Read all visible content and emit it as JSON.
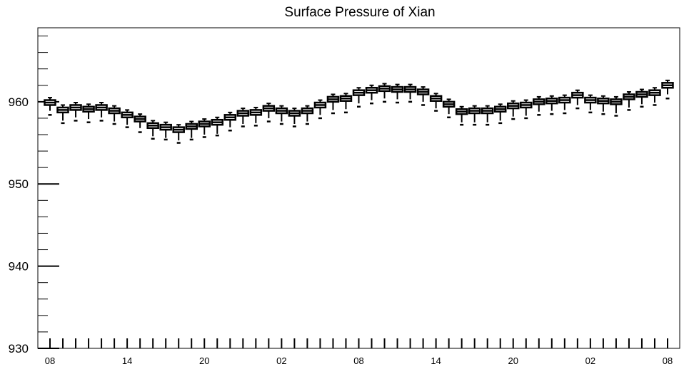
{
  "chart_data": {
    "type": "box",
    "title": "Surface Pressure of Xian",
    "xlabel": "",
    "ylabel": "",
    "ylim": [
      930,
      969
    ],
    "y_ticks": [
      930,
      940,
      950,
      960
    ],
    "y_minor_step": 2,
    "x_tick_labels": [
      "08",
      "14",
      "20",
      "02",
      "08",
      "14",
      "20",
      "02",
      "08"
    ],
    "x_step_hours": 3,
    "grid": false,
    "series": [
      {
        "median": [
          959.9,
          959.0,
          959.3,
          959.1,
          959.3,
          958.9,
          958.4,
          957.9,
          957.1,
          956.9,
          956.6,
          957.0,
          957.3,
          957.5,
          958.1,
          958.6,
          958.7,
          959.2,
          958.9,
          958.6,
          958.9,
          959.6,
          960.3,
          960.4,
          961.1,
          961.4,
          961.6,
          961.5,
          961.5,
          961.2,
          960.4,
          959.7,
          958.8,
          958.9,
          958.9,
          959.1,
          959.5,
          959.6,
          960.0,
          960.1,
          960.2,
          960.8,
          960.2,
          960.1,
          960.0,
          960.6,
          960.9,
          961.1,
          962.0
        ],
        "q1": [
          959.6,
          958.7,
          959.0,
          958.8,
          959.0,
          958.6,
          958.1,
          957.6,
          956.8,
          956.6,
          956.3,
          956.7,
          957.0,
          957.2,
          957.8,
          958.3,
          958.4,
          958.9,
          958.6,
          958.3,
          958.6,
          959.3,
          960.0,
          960.1,
          960.8,
          961.1,
          961.3,
          961.2,
          961.2,
          960.9,
          960.1,
          959.4,
          958.5,
          958.6,
          958.6,
          958.8,
          959.2,
          959.3,
          959.7,
          959.8,
          959.9,
          960.5,
          959.9,
          959.8,
          959.7,
          960.3,
          960.6,
          960.8,
          961.7
        ],
        "q3": [
          960.2,
          959.3,
          959.6,
          959.4,
          959.6,
          959.2,
          958.7,
          958.2,
          957.4,
          957.2,
          956.9,
          957.3,
          957.6,
          957.8,
          958.4,
          958.9,
          959.0,
          959.5,
          959.2,
          958.9,
          959.2,
          959.9,
          960.6,
          960.7,
          961.4,
          961.7,
          961.9,
          961.8,
          961.8,
          961.5,
          960.7,
          960.0,
          959.1,
          959.2,
          959.2,
          959.4,
          959.8,
          959.9,
          960.3,
          960.4,
          960.5,
          961.1,
          960.5,
          960.4,
          960.3,
          960.9,
          961.2,
          961.4,
          962.3
        ],
        "whisker_low": [
          958.9,
          957.7,
          958.1,
          957.9,
          958.1,
          957.6,
          957.2,
          956.8,
          955.8,
          955.6,
          955.3,
          955.6,
          956.0,
          956.1,
          956.9,
          957.3,
          957.4,
          958.0,
          957.6,
          957.3,
          957.6,
          958.4,
          959.0,
          959.1,
          959.8,
          960.2,
          960.4,
          960.3,
          960.3,
          960.0,
          959.2,
          958.5,
          957.5,
          957.5,
          957.5,
          957.7,
          958.2,
          958.3,
          958.8,
          958.9,
          959.0,
          959.6,
          959.0,
          958.8,
          958.6,
          959.3,
          959.7,
          959.9,
          960.9
        ],
        "whisker_high": [
          960.5,
          959.6,
          959.9,
          959.7,
          959.9,
          959.5,
          959.0,
          958.5,
          957.7,
          957.5,
          957.2,
          957.6,
          957.9,
          958.1,
          958.7,
          959.2,
          959.3,
          959.8,
          959.5,
          959.2,
          959.5,
          960.2,
          960.9,
          961.0,
          961.7,
          962.0,
          962.2,
          962.1,
          962.1,
          961.8,
          961.0,
          960.3,
          959.4,
          959.5,
          959.5,
          959.7,
          960.1,
          960.2,
          960.6,
          960.7,
          960.8,
          961.4,
          960.8,
          960.7,
          960.6,
          961.2,
          961.5,
          961.7,
          962.6
        ],
        "outlier_low": [
          958.4,
          957.4,
          957.7,
          957.5,
          957.7,
          957.3,
          956.9,
          956.3,
          955.5,
          955.4,
          955.0,
          955.4,
          955.7,
          955.9,
          956.5,
          957.0,
          957.1,
          957.6,
          957.3,
          957.0,
          957.3,
          958.0,
          958.6,
          958.7,
          959.4,
          959.8,
          960.0,
          959.9,
          960.0,
          959.6,
          958.9,
          958.1,
          957.2,
          957.2,
          957.2,
          957.4,
          957.9,
          958.0,
          958.4,
          958.5,
          958.6,
          959.2,
          958.7,
          958.5,
          958.3,
          959.0,
          959.4,
          959.6,
          960.4
        ]
      }
    ]
  }
}
